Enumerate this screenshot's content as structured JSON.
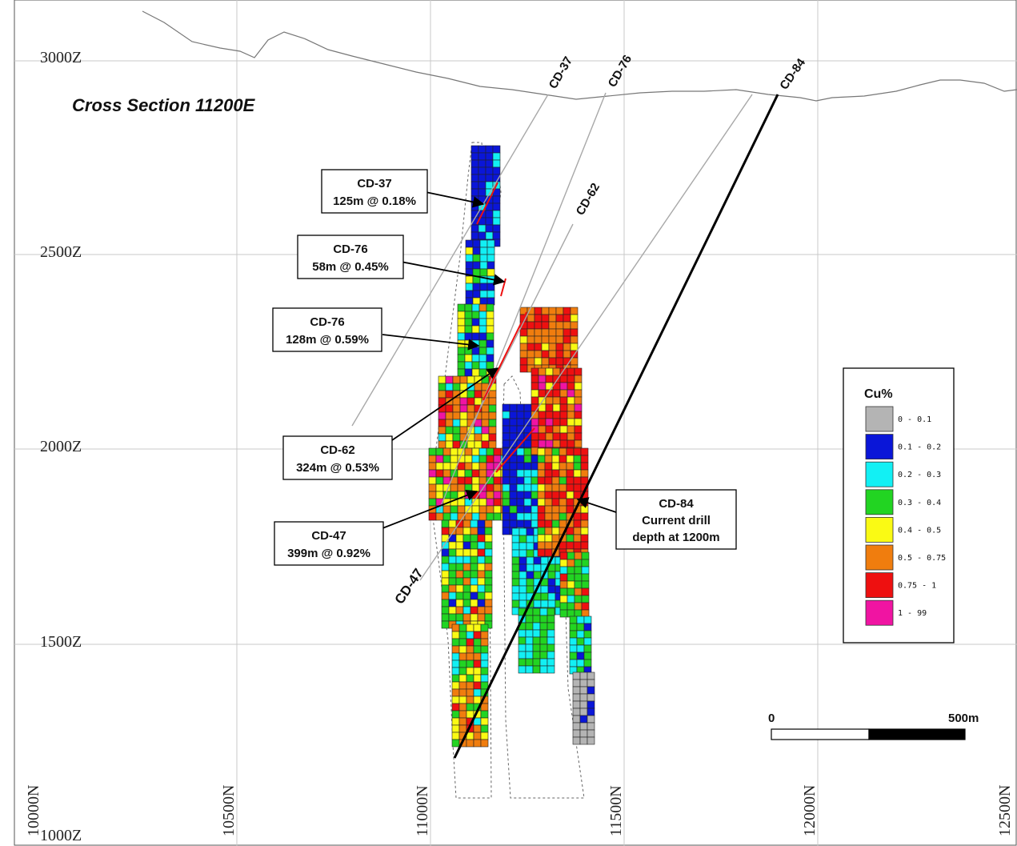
{
  "title": "Cross Section 11200E",
  "elevations": [
    "3000Z",
    "2500Z",
    "2000Z",
    "1500Z",
    "1000Z"
  ],
  "northings": [
    "10000N",
    "10500N",
    "11000N",
    "11500N",
    "12000N",
    "12500N"
  ],
  "drill_holes": [
    {
      "id": "cd-37",
      "label": "CD-37"
    },
    {
      "id": "cd-76",
      "label": "CD-76"
    },
    {
      "id": "cd-62",
      "label": "CD-62"
    },
    {
      "id": "cd-84",
      "label": "CD-84"
    },
    {
      "id": "cd-47",
      "label": "CD-47"
    }
  ],
  "callouts": [
    {
      "id": "cd-37",
      "hole": "CD-37",
      "line2": "125m @ 0.18%"
    },
    {
      "id": "cd-76-upper",
      "hole": "CD-76",
      "line2": "58m @ 0.45%"
    },
    {
      "id": "cd-76-lower",
      "hole": "CD-76",
      "line2": "128m @ 0.59%"
    },
    {
      "id": "cd-62",
      "hole": "CD-62",
      "line2": "324m @ 0.53%"
    },
    {
      "id": "cd-47",
      "hole": "CD-47",
      "line2": "399m @ 0.92%"
    },
    {
      "id": "cd-84",
      "hole": "CD-84",
      "line2": "Current drill",
      "line3": "depth at 1200m"
    }
  ],
  "legend": {
    "title": "Cu%",
    "items": [
      {
        "range": "0 - 0.1",
        "color": "#b4b4b4"
      },
      {
        "range": "0.1 - 0.2",
        "color": "#0a16d8"
      },
      {
        "range": "0.2 - 0.3",
        "color": "#12f0f4"
      },
      {
        "range": "0.3 - 0.4",
        "color": "#22d422"
      },
      {
        "range": "0.4 - 0.5",
        "color": "#fafa14"
      },
      {
        "range": "0.5 - 0.75",
        "color": "#f07d0e"
      },
      {
        "range": "0.75 - 1",
        "color": "#ee1010"
      },
      {
        "range": "1 - 99",
        "color": "#f014a2"
      }
    ]
  },
  "scale_bar": {
    "start": "0",
    "end": "500m"
  }
}
